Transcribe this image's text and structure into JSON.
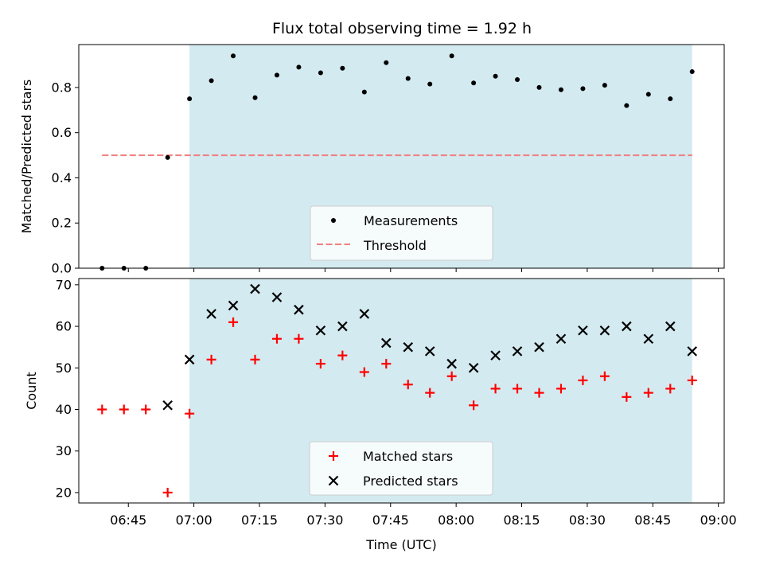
{
  "title": "Flux total observing time = 1.92 h",
  "xlabel": "Time (UTC)",
  "x_ticks": [
    "06:45",
    "07:00",
    "07:15",
    "07:30",
    "07:45",
    "08:00",
    "08:15",
    "08:30",
    "08:45",
    "09:00"
  ],
  "colors": {
    "shade": "#d3eaf0",
    "threshold": "#f07f7f",
    "matched": "#ff0000",
    "predicted": "#000000",
    "measurement": "#000000"
  },
  "chart_data": [
    {
      "type": "scatter",
      "ylabel": "Matched/Predicted stars",
      "ylim": [
        0.0,
        0.99
      ],
      "xlim": [
        "06:33:40",
        "09:01:20"
      ],
      "y_ticks": [
        "0.0",
        "0.2",
        "0.4",
        "0.6",
        "0.8"
      ],
      "shaded_region": {
        "x": [
          "06:59",
          "08:54"
        ]
      },
      "legend": {
        "position": "lower center",
        "entries": [
          "Measurements",
          "Threshold"
        ]
      },
      "threshold": {
        "name": "Threshold",
        "y": 0.5,
        "x": [
          "06:39",
          "08:54"
        ],
        "style": "dashed"
      },
      "series": [
        {
          "name": "Measurements",
          "x": [
            "06:39",
            "06:44",
            "06:49",
            "06:54",
            "06:59",
            "07:04",
            "07:09",
            "07:14",
            "07:19",
            "07:24",
            "07:29",
            "07:34",
            "07:39",
            "07:44",
            "07:49",
            "07:54",
            "07:59",
            "08:04",
            "08:09",
            "08:14",
            "08:19",
            "08:24",
            "08:29",
            "08:34",
            "08:39",
            "08:44",
            "08:49",
            "08:54"
          ],
          "y": [
            0.0,
            0.0,
            0.0,
            0.49,
            0.75,
            0.83,
            0.94,
            0.755,
            0.855,
            0.89,
            0.865,
            0.885,
            0.78,
            0.91,
            0.84,
            0.815,
            0.94,
            0.82,
            0.85,
            0.835,
            0.8,
            0.79,
            0.795,
            0.81,
            0.72,
            0.77,
            0.75,
            0.87
          ]
        }
      ]
    },
    {
      "type": "scatter",
      "ylabel": "Count",
      "ylim": [
        17.5,
        71.5
      ],
      "xlim": [
        "06:33:40",
        "09:01:20"
      ],
      "y_ticks": [
        "20",
        "30",
        "40",
        "50",
        "60",
        "70"
      ],
      "shaded_region": {
        "x": [
          "06:59",
          "08:54"
        ]
      },
      "legend": {
        "position": "lower center",
        "entries": [
          "Matched stars",
          "Predicted stars"
        ]
      },
      "series": [
        {
          "name": "Matched stars",
          "marker": "+",
          "x": [
            "06:39",
            "06:44",
            "06:49",
            "06:54",
            "06:59",
            "07:04",
            "07:09",
            "07:14",
            "07:19",
            "07:24",
            "07:29",
            "07:34",
            "07:39",
            "07:44",
            "07:49",
            "07:54",
            "07:59",
            "08:04",
            "08:09",
            "08:14",
            "08:19",
            "08:24",
            "08:29",
            "08:34",
            "08:39",
            "08:44",
            "08:49",
            "08:54"
          ],
          "y": [
            40,
            40,
            40,
            20,
            39,
            52,
            61,
            52,
            57,
            57,
            51,
            53,
            49,
            51,
            46,
            44,
            48,
            41,
            45,
            45,
            44,
            45,
            47,
            48,
            43,
            44,
            45,
            47
          ]
        },
        {
          "name": "Predicted stars",
          "marker": "x",
          "x": [
            "06:54",
            "06:59",
            "07:04",
            "07:09",
            "07:14",
            "07:19",
            "07:24",
            "07:29",
            "07:34",
            "07:39",
            "07:44",
            "07:49",
            "07:54",
            "07:59",
            "08:04",
            "08:09",
            "08:14",
            "08:19",
            "08:24",
            "08:29",
            "08:34",
            "08:39",
            "08:44",
            "08:49",
            "08:54"
          ],
          "y": [
            41,
            52,
            63,
            65,
            69,
            67,
            64,
            59,
            60,
            63,
            56,
            55,
            54,
            51,
            50,
            53,
            54,
            55,
            57,
            59,
            59,
            60,
            57,
            60,
            54
          ]
        }
      ]
    }
  ]
}
